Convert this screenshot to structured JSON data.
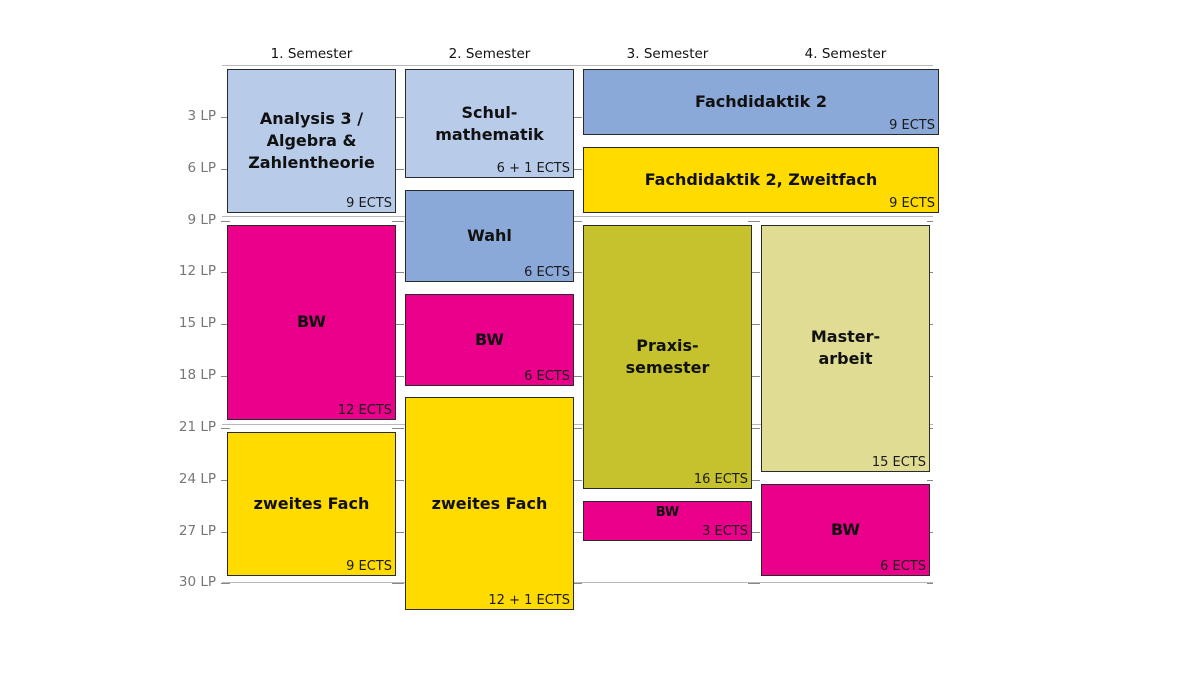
{
  "semesters": [
    "1. Semester",
    "2. Semester",
    "3. Semester",
    "4. Semester"
  ],
  "y_axis": {
    "unit": "LP",
    "ticks": [
      "3 LP",
      "6 LP",
      "9 LP",
      "12 LP",
      "15 LP",
      "18 LP",
      "21 LP",
      "24 LP",
      "27 LP",
      "30 LP"
    ]
  },
  "colors": {
    "light_blue": "#b8ccea",
    "mid_blue": "#8aa8d8",
    "magenta": "#ea008a",
    "yellow": "#ffdb00",
    "olive": "#c6c22e",
    "khaki": "#e0dc94"
  },
  "modules": [
    {
      "title": "Analysis 3 /\nAlgebra &\nZahlentheorie",
      "ects": "9 ECTS",
      "color": "light_blue",
      "semester_start": 1,
      "semester_span": 1,
      "lp_start": 0,
      "lp_end": 8.5
    },
    {
      "title": "BW",
      "ects": "12 ECTS",
      "color": "magenta",
      "semester_start": 1,
      "semester_span": 1,
      "lp_start": 9,
      "lp_end": 20.5
    },
    {
      "title": "zweites Fach",
      "ects": "9 ECTS",
      "color": "yellow",
      "semester_start": 1,
      "semester_span": 1,
      "lp_start": 21,
      "lp_end": 29.5
    },
    {
      "title": "Schul-\nmathematik",
      "ects": "6 + 1 ECTS",
      "color": "light_blue",
      "semester_start": 2,
      "semester_span": 1,
      "lp_start": 0,
      "lp_end": 6.5
    },
    {
      "title": "Wahl",
      "ects": "6 ECTS",
      "color": "mid_blue",
      "semester_start": 2,
      "semester_span": 1,
      "lp_start": 7,
      "lp_end": 12.5
    },
    {
      "title": "BW",
      "ects": "6 ECTS",
      "color": "magenta",
      "semester_start": 2,
      "semester_span": 1,
      "lp_start": 13,
      "lp_end": 18.5
    },
    {
      "title": "zweites Fach",
      "ects": "12 + 1 ECTS",
      "color": "yellow",
      "semester_start": 2,
      "semester_span": 1,
      "lp_start": 19,
      "lp_end": 31.5
    },
    {
      "title": "Fachdidaktik 2",
      "ects": "9 ECTS",
      "color": "mid_blue",
      "semester_start": 3,
      "semester_span": 2,
      "lp_start": 0,
      "lp_end": 4
    },
    {
      "title": "Fachdidaktik 2, Zweitfach",
      "ects": "9 ECTS",
      "color": "yellow",
      "semester_start": 3,
      "semester_span": 2,
      "lp_start": 4.5,
      "lp_end": 8.5
    },
    {
      "title": "Praxis-\nsemester",
      "ects": "16 ECTS",
      "color": "olive",
      "semester_start": 3,
      "semester_span": 1,
      "lp_start": 9,
      "lp_end": 24.5
    },
    {
      "title": "BW",
      "ects": "3 ECTS",
      "color": "magenta",
      "semester_start": 3,
      "semester_span": 1,
      "lp_start": 25,
      "lp_end": 27.5,
      "small_title": true
    },
    {
      "title": "Master-\narbeit",
      "ects": "15 ECTS",
      "color": "khaki",
      "semester_start": 4,
      "semester_span": 1,
      "lp_start": 9,
      "lp_end": 23.5
    },
    {
      "title": "BW",
      "ects": "6 ECTS",
      "color": "magenta",
      "semester_start": 4,
      "semester_span": 1,
      "lp_start": 24,
      "lp_end": 29.5
    }
  ]
}
